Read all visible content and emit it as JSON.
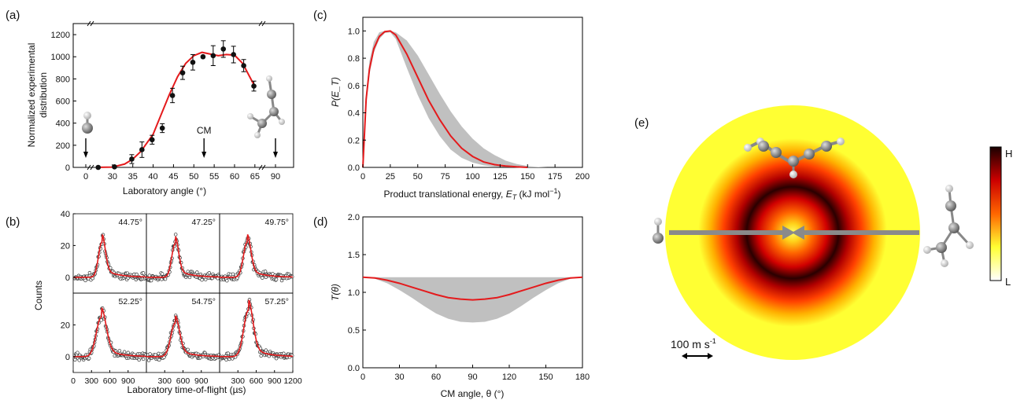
{
  "chart_data": [
    {
      "panel": "(a)",
      "type": "scatter",
      "ylabel_lines": [
        "Normalized experimental",
        "distribution"
      ],
      "xlabel": "Laboratory angle (°)",
      "xlim": [
        0,
        90
      ],
      "ylim": [
        0,
        1300
      ],
      "xticks": [
        0,
        30,
        35,
        40,
        45,
        50,
        55,
        60,
        65,
        90
      ],
      "yticks": [
        0,
        200,
        400,
        600,
        800,
        1000,
        1200
      ],
      "annotation": "CM",
      "cm_angle": 52.5,
      "series": [
        {
          "kind": "points",
          "x": [
            26.5,
            30.5,
            34.75,
            37.25,
            39.75,
            42.25,
            44.75,
            47.25,
            49.75,
            52.25,
            54.75,
            57.25,
            59.75,
            62.25,
            64.75
          ],
          "y": [
            0,
            5,
            75,
            160,
            250,
            355,
            650,
            855,
            950,
            1000,
            1010,
            1070,
            1020,
            920,
            735
          ],
          "err": [
            0,
            0,
            40,
            70,
            40,
            40,
            65,
            60,
            70,
            0,
            90,
            75,
            75,
            55,
            45
          ]
        },
        {
          "kind": "fit",
          "x": [
            26,
            30,
            33,
            35,
            37,
            40,
            42,
            44,
            46,
            48,
            50,
            52,
            54,
            56,
            58,
            60,
            62,
            64,
            65
          ],
          "y": [
            0,
            3,
            30,
            75,
            145,
            300,
            480,
            660,
            820,
            940,
            1010,
            1040,
            1025,
            1010,
            1020,
            1015,
            940,
            800,
            730
          ]
        }
      ]
    },
    {
      "panel": "(b)",
      "type": "scatter",
      "ylabel": "Counts",
      "xlabel": "Laboratory time-of-flight (µs)",
      "xlim": [
        0,
        1200
      ],
      "ylim": [
        -10,
        40
      ],
      "xticks": [
        0,
        150,
        300,
        450,
        600,
        750,
        900,
        1050,
        1200
      ],
      "yticks_top": [
        0,
        20,
        40
      ],
      "yticks_bottom": [
        0,
        20
      ],
      "subplots": [
        {
          "label": "44.75°",
          "peak_time": 470,
          "peak": 22,
          "width": 55
        },
        {
          "label": "47.25°",
          "peak_time": 470,
          "peak": 21,
          "width": 55
        },
        {
          "label": "49.75°",
          "peak_time": 450,
          "peak": 22,
          "width": 60
        },
        {
          "label": "52.25°",
          "peak_time": 460,
          "peak": 25,
          "width": 80
        },
        {
          "label": "54.75°",
          "peak_time": 470,
          "peak": 21,
          "width": 70
        },
        {
          "label": "57.25°",
          "peak_time": 470,
          "peak": 29,
          "width": 75
        }
      ]
    },
    {
      "panel": "(c)",
      "type": "area",
      "ylabel": "P(E_T)",
      "xlabel_text": "Product translational energy, ",
      "xlabel_sym": "E",
      "xlabel_sub": "T",
      "xlabel_unit": " (kJ mol",
      "xlabel_sup": "−1",
      "xlabel_close": ")",
      "xlim": [
        0,
        200
      ],
      "ylim": [
        0,
        1.1
      ],
      "xticks": [
        0,
        25,
        50,
        75,
        100,
        125,
        150,
        175,
        200
      ],
      "yticks": [
        0.0,
        0.2,
        0.4,
        0.6,
        0.8,
        1.0
      ],
      "best_fit": {
        "x": [
          0,
          3,
          6,
          10,
          15,
          20,
          25,
          30,
          40,
          50,
          60,
          70,
          80,
          90,
          100,
          110,
          120,
          130,
          140,
          150
        ],
        "y": [
          0,
          0.5,
          0.72,
          0.87,
          0.96,
          0.995,
          1.0,
          0.97,
          0.83,
          0.66,
          0.49,
          0.35,
          0.23,
          0.14,
          0.08,
          0.04,
          0.02,
          0.01,
          0.004,
          0
        ]
      },
      "band_upper": {
        "x": [
          0,
          3,
          6,
          10,
          15,
          20,
          25,
          30,
          40,
          50,
          60,
          70,
          80,
          90,
          100,
          110,
          120,
          130,
          140,
          150,
          160,
          168
        ],
        "y": [
          0,
          0.55,
          0.78,
          0.92,
          0.99,
          1.0,
          1.0,
          0.99,
          0.93,
          0.82,
          0.68,
          0.54,
          0.41,
          0.3,
          0.21,
          0.14,
          0.09,
          0.05,
          0.025,
          0.01,
          0.003,
          0
        ]
      },
      "band_lower": {
        "x": [
          0,
          3,
          6,
          10,
          15,
          20,
          25,
          30,
          40,
          50,
          60,
          70,
          80,
          90,
          100,
          110,
          120,
          130,
          140
        ],
        "y": [
          0,
          0.45,
          0.68,
          0.84,
          0.94,
          0.985,
          0.99,
          0.94,
          0.73,
          0.53,
          0.36,
          0.23,
          0.13,
          0.07,
          0.035,
          0.015,
          0.006,
          0.002,
          0
        ]
      }
    },
    {
      "panel": "(d)",
      "type": "area",
      "ylabel": "T(θ)",
      "xlabel": "CM angle, θ (°)",
      "xlim": [
        0,
        180
      ],
      "ylim": [
        0,
        2.0
      ],
      "xticks": [
        0,
        30,
        60,
        90,
        120,
        150,
        180
      ],
      "yticks": [
        0.0,
        0.5,
        1.0,
        1.5,
        2.0
      ],
      "best_fit": {
        "x": [
          0,
          10,
          20,
          30,
          40,
          50,
          60,
          70,
          80,
          90,
          100,
          110,
          120,
          130,
          140,
          150,
          160,
          170,
          180
        ],
        "y": [
          1.2,
          1.19,
          1.16,
          1.12,
          1.07,
          1.02,
          0.97,
          0.93,
          0.91,
          0.9,
          0.91,
          0.93,
          0.97,
          1.02,
          1.07,
          1.12,
          1.16,
          1.19,
          1.2
        ]
      },
      "band_upper": 1.2,
      "band_lower": {
        "x": [
          0,
          10,
          20,
          30,
          40,
          50,
          60,
          70,
          80,
          90,
          100,
          110,
          120,
          130,
          140,
          150,
          160,
          170,
          180
        ],
        "y": [
          1.2,
          1.18,
          1.12,
          1.03,
          0.93,
          0.82,
          0.72,
          0.65,
          0.61,
          0.6,
          0.61,
          0.65,
          0.72,
          0.82,
          0.93,
          1.03,
          1.12,
          1.18,
          1.2
        ]
      }
    },
    {
      "panel": "(e)",
      "type": "heatmap",
      "scale_label": "100 m s",
      "scale_sup": "-1",
      "colorbar_high": "H",
      "colorbar_low": "L"
    }
  ],
  "colors": {
    "fit": "#e41a1c",
    "band": "#c0c0c0",
    "points": "#111111",
    "open_points": "#333333",
    "beam_arrow": "#8a8a8a",
    "heat_outer": "#ffff33",
    "heat_ring": "#1a0000"
  }
}
